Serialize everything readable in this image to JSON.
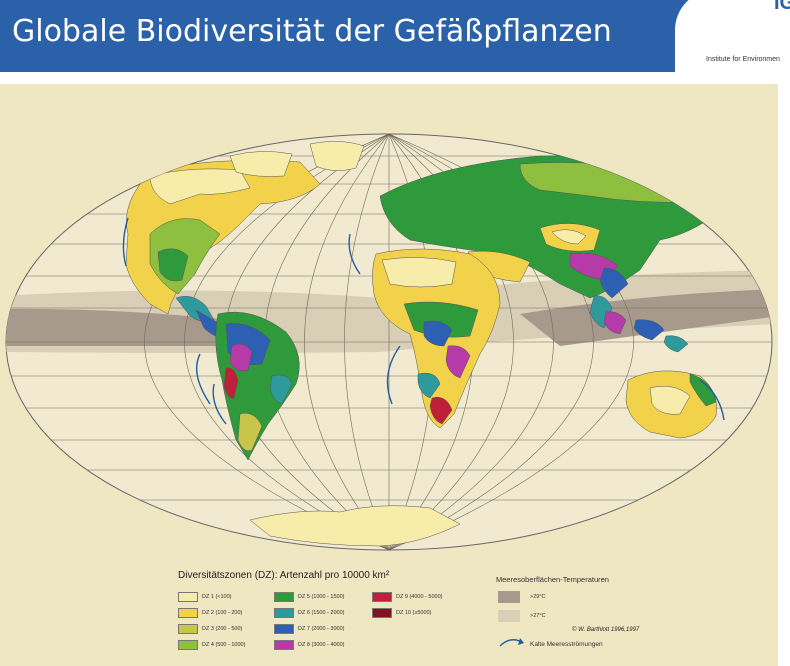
{
  "header": {
    "title": "Globale Biodiversität der Gefäßpflanzen",
    "institute": "Institute for Environmen"
  },
  "map": {
    "credit": "© W. Barthlott 1996,1997",
    "legend": {
      "title": "Diversitätszonen (DZ): Artenzahl pro 10000 km²",
      "zones": [
        {
          "label": "DZ 1 (<100)",
          "color": "#f7ecaa"
        },
        {
          "label": "DZ 2 (100 - 200)",
          "color": "#f2d24a"
        },
        {
          "label": "DZ 3 (200 - 500)",
          "color": "#c9c54a"
        },
        {
          "label": "DZ 4 (500 - 1000)",
          "color": "#8fbf3f"
        },
        {
          "label": "DZ 5 (1000 - 1500)",
          "color": "#2e9a3c"
        },
        {
          "label": "DZ 6 (1500 - 2000)",
          "color": "#2f9a9c"
        },
        {
          "label": "DZ 7 (2000 - 3000)",
          "color": "#2d5fb2"
        },
        {
          "label": "DZ 8 (3000 - 4000)",
          "color": "#b63aa8"
        },
        {
          "label": "DZ 9 (4000 - 5000)",
          "color": "#c01f3a"
        },
        {
          "label": "DZ 10 (≥5000)",
          "color": "#7d1420"
        }
      ],
      "sst": {
        "title": "Meeresoberflächen-Temperaturen",
        "items": [
          {
            "label": ">29°C",
            "color": "#a79a8c"
          },
          {
            "label": ">27°C",
            "color": "#d8cfb6"
          }
        ],
        "current_label": "Kalte Meeresströmungen"
      }
    }
  }
}
